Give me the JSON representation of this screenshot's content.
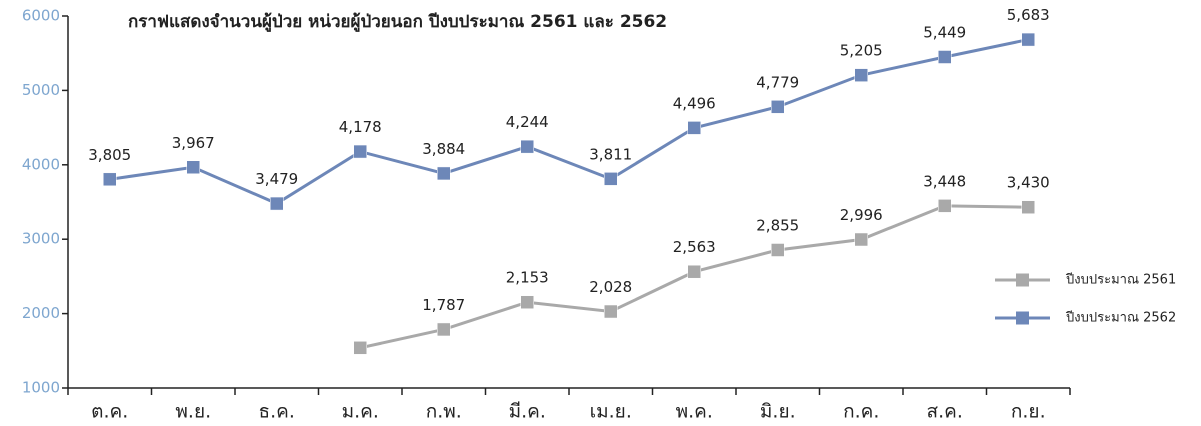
{
  "chart_data": {
    "type": "line",
    "title": "กราฟแสดงจำนวนผู้ป่วย หน่วยผู้ป่วยนอก ปีงบประมาณ 2561 และ 2562",
    "categories": [
      "ต.ค.",
      "พ.ย.",
      "ธ.ค.",
      "ม.ค.",
      "ก.พ.",
      "มี.ค.",
      "เม.ย.",
      "พ.ค.",
      "มิ.ย.",
      "ก.ค.",
      "ส.ค.",
      "ก.ย."
    ],
    "series": [
      {
        "name": "ปีงบประมาณ 2561",
        "color": "#a9a9a9",
        "values": [
          null,
          null,
          null,
          1540,
          1787,
          2153,
          2028,
          2563,
          2855,
          2996,
          3448,
          3430
        ],
        "value_labels": [
          null,
          null,
          null,
          null,
          "1,787",
          "2,153",
          "2,028",
          "2,563",
          "2,855",
          "2,996",
          "3,448",
          "3,430"
        ]
      },
      {
        "name": "ปีงบประมาณ 2562",
        "color": "#6d87b8",
        "values": [
          3805,
          3967,
          3479,
          4178,
          3884,
          4244,
          3811,
          4496,
          4779,
          5205,
          5449,
          5683
        ],
        "value_labels": [
          "3,805",
          "3,967",
          "3,479",
          "4,178",
          "3,884",
          "4,244",
          "3,811",
          "4,496",
          "4,779",
          "5,205",
          "5,449",
          "5,683"
        ]
      }
    ],
    "ylim": [
      1000,
      6000
    ],
    "yticks": [
      1000,
      2000,
      3000,
      4000,
      5000,
      6000
    ],
    "legend": "right"
  }
}
